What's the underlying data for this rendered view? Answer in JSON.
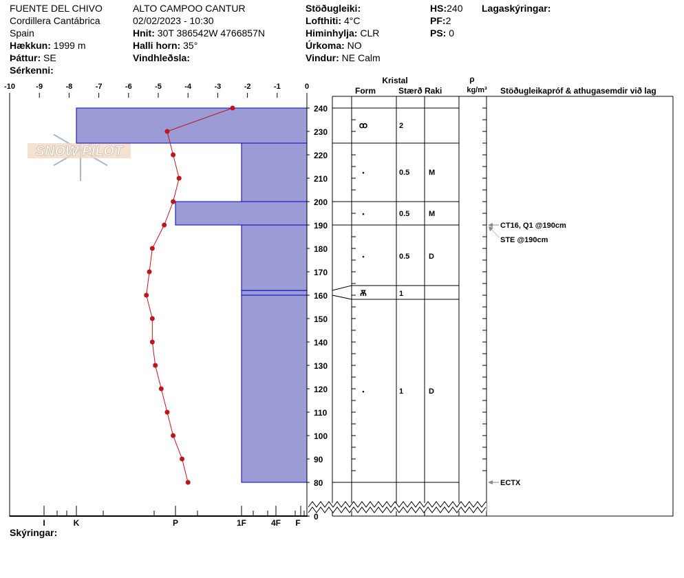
{
  "header": {
    "col1": [
      {
        "value": "FUENTE DEL CHIVO"
      },
      {
        "value": "Cordillera Cantábrica"
      },
      {
        "value": "Spain"
      },
      {
        "label": "Hækkun:",
        "value": " 1999 m"
      },
      {
        "label": "Þáttur:",
        "value": " SE"
      },
      {
        "label": "Sérkenni:",
        "value": ""
      }
    ],
    "col2": [
      {
        "value": "ALTO CAMPOO CANTUR"
      },
      {
        "value": "02/02/2023 - 10:30"
      },
      {
        "label": "Hnit:",
        "value": " 30T 386542W 4766857N"
      },
      {
        "label": "Halli horn:",
        "value": " 35°"
      },
      {
        "label": "Vindhleðsla:",
        "value": ""
      }
    ],
    "col3": [
      {
        "label": "Stöðugleiki:",
        "value": ""
      },
      {
        "label": "Lofthiti:",
        "value": " 4°C"
      },
      {
        "label": "Himinhylja:",
        "value": " CLR"
      },
      {
        "label": "Úrkoma:",
        "value": " NO"
      },
      {
        "label": "Vindur:",
        "value": "  NE Calm"
      }
    ],
    "col4": [
      {
        "label": "HS:",
        "value": "240"
      },
      {
        "label": "PF:",
        "value": "2"
      },
      {
        "label": "PS:",
        "value": " 0"
      }
    ],
    "legend_label": "Lagaskýringar:",
    "footer_label": "Skýringar:"
  },
  "logo_text": "SNOW PILOT",
  "table_headers": {
    "crystal": "Kristal",
    "form": "Form",
    "size": "Stærð",
    "moisture": "Raki",
    "rho": "ρ",
    "density_unit": "kg/m³",
    "comments": "Stöðugleikapróf & athugasemdir við lag"
  },
  "colors": {
    "layer_fill": "#9b9bd6",
    "layer_stroke": "#0000c0",
    "temp_line": "#c0141c",
    "arrow": "#888888"
  },
  "chart_data": {
    "type": "line",
    "temperature_axis": {
      "ticks": [
        "-10",
        "-9",
        "-8",
        "-7",
        "-6",
        "-5",
        "-4",
        "-3",
        "-2",
        "-1",
        "0"
      ],
      "range": [
        -10,
        0
      ]
    },
    "depth_axis": {
      "ticks": [
        "240",
        "230",
        "220",
        "210",
        "200",
        "190",
        "180",
        "170",
        "160",
        "150",
        "140",
        "130",
        "120",
        "110",
        "100",
        "90",
        "80",
        "0"
      ],
      "range": [
        0,
        245
      ],
      "broken_below": 80
    },
    "hardness_axis": {
      "ticks": [
        "I",
        "K",
        "P",
        "1F",
        "4F",
        "F"
      ]
    },
    "temperature_profile": {
      "depth_cm": [
        240,
        230,
        220,
        210,
        200,
        190,
        180,
        170,
        160,
        150,
        140,
        130,
        120,
        110,
        100,
        90,
        80
      ],
      "temp_c": [
        -2.5,
        -4.7,
        -4.5,
        -4.3,
        -4.5,
        -4.8,
        -5.2,
        -5.3,
        -5.4,
        -5.2,
        -5.2,
        -5.1,
        -4.9,
        -4.7,
        -4.5,
        -4.2,
        -4.0
      ]
    },
    "layers": [
      {
        "top": 240,
        "bottom": 225,
        "hardness": "K",
        "form": "ꝏ",
        "size": "2",
        "moisture": ""
      },
      {
        "top": 225,
        "bottom": 200,
        "hardness": "1F",
        "form": "•",
        "size": "0.5",
        "moisture": "M"
      },
      {
        "top": 200,
        "bottom": 190,
        "hardness": "P",
        "form": "•",
        "size": "0.5",
        "moisture": "M"
      },
      {
        "top": 190,
        "bottom": 162,
        "hardness": "1F",
        "form": "•",
        "size": "0.5",
        "moisture": "D"
      },
      {
        "top": 162,
        "bottom": 160,
        "hardness": "1F",
        "form": "Ѫ",
        "size": "1",
        "moisture": ""
      },
      {
        "top": 160,
        "bottom": 80,
        "hardness": "1F",
        "form": "•",
        "size": "1",
        "moisture": "D"
      }
    ],
    "stability_tests": [
      {
        "depth": 190,
        "text": "CT16, Q1 @190cm"
      },
      {
        "depth": 190,
        "text": "STE @190cm"
      },
      {
        "depth": 80,
        "text": "ECTX"
      }
    ]
  }
}
